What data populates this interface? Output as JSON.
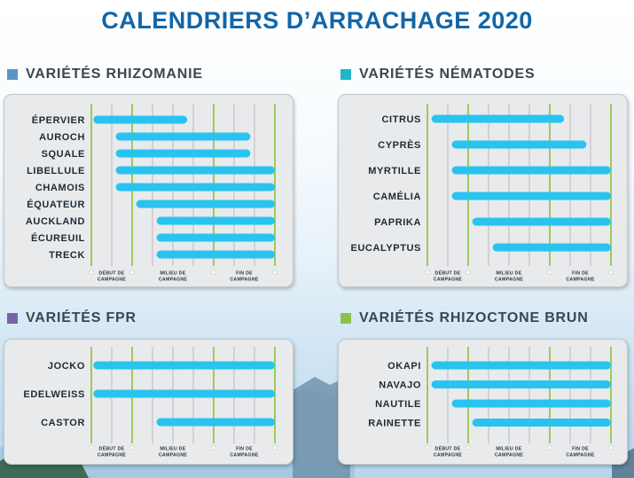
{
  "title": "CALENDRIERS D’ARRACHAGE 2020",
  "colors": {
    "title": "#1266a8",
    "bar": "#29c3f0",
    "green_line": "#9ccb5a",
    "grey_line": "#b7bbbf",
    "panel_bg": "#e8eaec"
  },
  "chart_data": [
    {
      "type": "bar",
      "title": "VARIÉTÉS RHIZOMANIE",
      "square_color": "#5a93c9",
      "timeline": [
        "DÉBUT DE CAMPAGNE",
        "MILIEU DE CAMPAGNE",
        "FIN DE CAMPAGNE"
      ],
      "x_range": [
        0,
        9
      ],
      "categories": [
        "ÉPERVIER",
        "AUROCH",
        "SQUALE",
        "LIBELLULE",
        "CHAMOIS",
        "ÉQUATEUR",
        "AUCKLAND",
        "ÉCUREUIL",
        "TRECK"
      ],
      "bars": [
        [
          0.1,
          4.7
        ],
        [
          1.2,
          7.8
        ],
        [
          1.2,
          7.8
        ],
        [
          1.2,
          9
        ],
        [
          1.2,
          9
        ],
        [
          2.2,
          9
        ],
        [
          3.2,
          9
        ],
        [
          3.2,
          9
        ],
        [
          3.2,
          9
        ]
      ]
    },
    {
      "type": "bar",
      "title": "VARIÉTÉS NÉMATODES",
      "square_color": "#1fb6c9",
      "timeline": [
        "DÉBUT DE CAMPAGNE",
        "MILIEU DE CAMPAGNE",
        "FIN DE CAMPAGNE"
      ],
      "x_range": [
        0,
        9
      ],
      "categories": [
        "CITRUS",
        "CYPRÈS",
        "MYRTILLE",
        "CAMÉLIA",
        "PAPRIKA",
        "EUCALYPTUS"
      ],
      "bars": [
        [
          0.2,
          6.7
        ],
        [
          1.2,
          7.8
        ],
        [
          1.2,
          9
        ],
        [
          1.2,
          9
        ],
        [
          2.2,
          9
        ],
        [
          3.2,
          9
        ]
      ]
    },
    {
      "type": "bar",
      "title": "VARIÉTÉS FPR",
      "square_color": "#7a62a8",
      "timeline": [
        "DÉBUT DE CAMPAGNE",
        "MILIEU DE CAMPAGNE",
        "FIN DE CAMPAGNE"
      ],
      "x_range": [
        0,
        9
      ],
      "categories": [
        "JOCKO",
        "EDELWEISS",
        "CASTOR"
      ],
      "bars": [
        [
          0.1,
          9
        ],
        [
          0.1,
          9
        ],
        [
          3.2,
          9
        ]
      ]
    },
    {
      "type": "bar",
      "title": "VARIÉTÉS RHIZOCTONE BRUN",
      "square_color": "#8cc34a",
      "timeline": [
        "DÉBUT DE CAMPAGNE",
        "MILIEU DE CAMPAGNE",
        "FIN DE CAMPAGNE"
      ],
      "x_range": [
        0,
        9
      ],
      "categories": [
        "OKAPI",
        "NAVAJO",
        "NAUTILE",
        "RAINETTE"
      ],
      "bars": [
        [
          0.2,
          9
        ],
        [
          0.2,
          9
        ],
        [
          1.2,
          9
        ],
        [
          2.2,
          9
        ]
      ]
    }
  ]
}
